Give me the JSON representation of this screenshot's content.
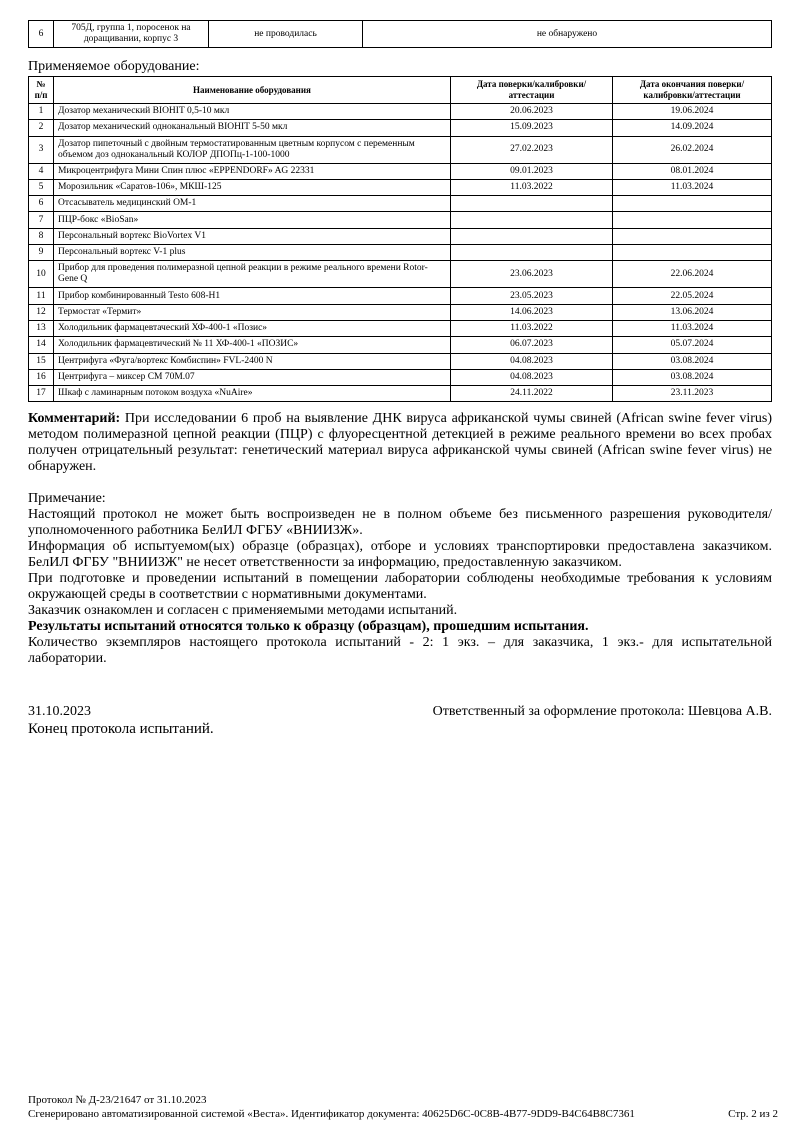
{
  "sample_row": {
    "num": "6",
    "name": "705Д, группа 1, поросенок на доращивании, корпус 3",
    "col3": "не проводилась",
    "col4": "не обнаружено"
  },
  "equipment": {
    "title": "Применяемое оборудование:",
    "headers": [
      "№ п/п",
      "Наименование оборудования",
      "Дата поверки/калибровки/аттестации",
      "Дата окончания поверки/калибровки/аттестации"
    ],
    "rows": [
      [
        "1",
        "Дозатор механический BIOHIT 0,5-10 мкл",
        "20.06.2023",
        "19.06.2024"
      ],
      [
        "2",
        "Дозатор механический одноканальный BIOHIT 5-50 мкл",
        "15.09.2023",
        "14.09.2024"
      ],
      [
        "3",
        "Дозатор пипеточный с двойным термостатированным цветным корпусом с переменным объемом доз одноканальный КОЛОР ДПОПц-1-100-1000",
        "27.02.2023",
        "26.02.2024"
      ],
      [
        "4",
        "Микроцентрифуга Мини Спин плюс «EPPENDORF» AG 22331",
        "09.01.2023",
        "08.01.2024"
      ],
      [
        "5",
        "Морозильник «Саратов-106», МКШ-125",
        "11.03.2022",
        "11.03.2024"
      ],
      [
        "6",
        "Отсасыватель медицинский ОМ-1",
        "",
        ""
      ],
      [
        "7",
        "ПЦР-бокс «BioSan»",
        "",
        ""
      ],
      [
        "8",
        "Персональный вортекс BioVortex V1",
        "",
        ""
      ],
      [
        "9",
        "Персональный вортекс V-1 plus",
        "",
        ""
      ],
      [
        "10",
        "Прибор для проведения полимеразной цепной реакции в режиме реального времени Rotor-Gene Q",
        "23.06.2023",
        "22.06.2024"
      ],
      [
        "11",
        "Прибор комбинированный Testo 608-H1",
        "23.05.2023",
        "22.05.2024"
      ],
      [
        "12",
        "Термостат «Термит»",
        "14.06.2023",
        "13.06.2024"
      ],
      [
        "13",
        "Холодильник фармацевтаческий ХФ-400-1 «Позис»",
        "11.03.2022",
        "11.03.2024"
      ],
      [
        "14",
        "Холодильник фармацевтический № 11 ХФ-400-1 «ПОЗИС»",
        "06.07.2023",
        "05.07.2024"
      ],
      [
        "15",
        "Центрифуга «Фуга/вортекс Комбиспин» FVL-2400 N",
        "04.08.2023",
        "03.08.2024"
      ],
      [
        "16",
        "Центрифуга – миксер СМ 70М.07",
        "04.08.2023",
        "03.08.2024"
      ],
      [
        "17",
        "Шкаф с ламинарным потоком воздуха «NuAire»",
        "24.11.2022",
        "23.11.2023"
      ]
    ]
  },
  "comment": {
    "label": "Комментарий:",
    "text": " При исследовании 6 проб на выявление ДНК вируса африканской чумы свиней (African swine fever virus) методом полимеразной цепной реакции (ПЦР) с флуоресцентной детекцией в режиме реального времени во всех пробах получен отрицательный результат: генетический материал вируса африканской чумы свиней (African swine fever virus) не обнаружен."
  },
  "note": {
    "title": "Примечание:",
    "lines": [
      "Настоящий протокол не может быть воспроизведен не в полном объеме без письменного разрешения руководителя/уполномоченного работника БелИЛ ФГБУ «ВНИИЗЖ».",
      "Информация об испытуемом(ых) образце (образцах), отборе и условиях транспортировки предоставлена заказчиком. БелИЛ ФГБУ \"ВНИИЗЖ\" не несет ответственности за информацию, предоставленную заказчиком.",
      "При подготовке и проведении испытаний в помещении лаборатории соблюдены необходимые требования к условиям окружающей среды в соответствии с нормативными документами.",
      "Заказчик ознакомлен и согласен с применяемыми методами испытаний."
    ],
    "bold": "Результаты испытаний относятся только к образцу (образцам), прошедшим испытания.",
    "copies": "Количество экземпляров настоящего протокола испытаний - 2: 1 экз. – для заказчика, 1 экз.- для испытательной лаборатории."
  },
  "signature": {
    "date": "31.10.2023",
    "responsible": "Ответственный за оформление протокола: Шевцова А.В.",
    "end": "Конец протокола испытаний."
  },
  "footer": {
    "protocol": "Протокол № Д-23/21647 от 31.10.2023",
    "generated": "Сгенерировано автоматизированной системой «Веста». Идентификатор документа: 40625D6C-0C8B-4B77-9DD9-B4C64B8C7361",
    "page": "Стр. 2 из 2"
  }
}
